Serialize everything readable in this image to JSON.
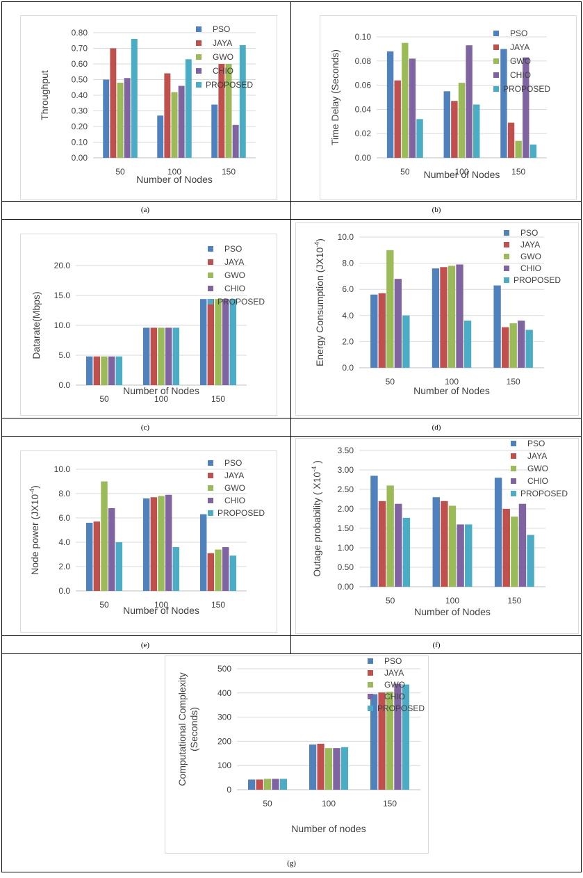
{
  "colors": {
    "PSO": "#4f81bd",
    "JAYA": "#c0504d",
    "GWO": "#9bbb59",
    "CHIO": "#8064a2",
    "PROPOSED": "#4bacc6"
  },
  "chart_data": [
    {
      "id": "a",
      "type": "bar",
      "caption": "(a)",
      "title": "",
      "xlabel": "Number of Nodes",
      "ylabel": "Throughput",
      "categories": [
        "50",
        "100",
        "150"
      ],
      "yticks": [
        "0.00",
        "0.10",
        "0.20",
        "0.30",
        "0.40",
        "0.50",
        "0.60",
        "0.70",
        "0.80"
      ],
      "ylim": [
        0,
        0.8
      ],
      "legend": "right",
      "series": [
        {
          "name": "PSO",
          "values": [
            0.5,
            0.27,
            0.34
          ]
        },
        {
          "name": "JAYA",
          "values": [
            0.7,
            0.54,
            0.6
          ]
        },
        {
          "name": "GWO",
          "values": [
            0.48,
            0.42,
            0.6
          ]
        },
        {
          "name": "CHIO",
          "values": [
            0.51,
            0.46,
            0.21
          ]
        },
        {
          "name": "PROPOSED",
          "values": [
            0.76,
            0.63,
            0.72
          ]
        }
      ]
    },
    {
      "id": "b",
      "type": "bar",
      "caption": "(b)",
      "title": "",
      "xlabel": "Number of Nodes",
      "ylabel": "Time Delay (Seconds)",
      "categories": [
        "50",
        "100",
        "150"
      ],
      "yticks": [
        "0.00",
        "0.02",
        "0.04",
        "0.06",
        "0.08",
        "0.10"
      ],
      "ylim": [
        0,
        0.1
      ],
      "legend": "right",
      "series": [
        {
          "name": "PSO",
          "values": [
            0.088,
            0.055,
            0.09
          ]
        },
        {
          "name": "JAYA",
          "values": [
            0.064,
            0.047,
            0.029
          ]
        },
        {
          "name": "GWO",
          "values": [
            0.095,
            0.062,
            0.014
          ]
        },
        {
          "name": "CHIO",
          "values": [
            0.082,
            0.093,
            0.083
          ]
        },
        {
          "name": "PROPOSED",
          "values": [
            0.032,
            0.044,
            0.011
          ]
        }
      ]
    },
    {
      "id": "c",
      "type": "bar",
      "caption": "(c)",
      "title": "",
      "xlabel": "Number of Nodes",
      "ylabel": "Datarate(Mbps)",
      "categories": [
        "50",
        "100",
        "150"
      ],
      "yticks": [
        "0.0",
        "5.0",
        "10.0",
        "15.0",
        "20.0"
      ],
      "ylim": [
        0,
        20
      ],
      "legend": "right",
      "series": [
        {
          "name": "PSO",
          "values": [
            4.8,
            9.6,
            14.4
          ]
        },
        {
          "name": "JAYA",
          "values": [
            4.8,
            9.6,
            14.4
          ]
        },
        {
          "name": "GWO",
          "values": [
            4.8,
            9.6,
            14.4
          ]
        },
        {
          "name": "CHIO",
          "values": [
            4.8,
            9.6,
            14.4
          ]
        },
        {
          "name": "PROPOSED",
          "values": [
            4.8,
            9.6,
            14.4
          ]
        }
      ]
    },
    {
      "id": "d",
      "type": "bar",
      "caption": "(d)",
      "title": "",
      "xlabel": "Number of Nodes",
      "ylabel": "Energy Consumption (JX10",
      "ylabel_sup": "-4",
      "ylabel_end": ")",
      "categories": [
        "50",
        "100",
        "150"
      ],
      "yticks": [
        "0.0",
        "2.0",
        "4.0",
        "6.0",
        "8.0",
        "10.0"
      ],
      "ylim": [
        0,
        10
      ],
      "legend": "right",
      "series": [
        {
          "name": "PSO",
          "values": [
            5.6,
            7.6,
            6.3
          ]
        },
        {
          "name": "JAYA",
          "values": [
            5.7,
            7.7,
            3.1
          ]
        },
        {
          "name": "GWO",
          "values": [
            9.0,
            7.8,
            3.4
          ]
        },
        {
          "name": "CHIO",
          "values": [
            6.8,
            7.9,
            3.6
          ]
        },
        {
          "name": "PROPOSED",
          "values": [
            4.0,
            3.6,
            2.9
          ]
        }
      ]
    },
    {
      "id": "e",
      "type": "bar",
      "caption": "(e)",
      "title": "",
      "xlabel": "Number of Nodes",
      "ylabel": "Node power (JX10",
      "ylabel_sup": "-4",
      "ylabel_end": ")",
      "categories": [
        "50",
        "100",
        "150"
      ],
      "yticks": [
        "0.0",
        "2.0",
        "4.0",
        "6.0",
        "8.0",
        "10.0"
      ],
      "ylim": [
        0,
        10
      ],
      "legend": "right",
      "series": [
        {
          "name": "PSO",
          "values": [
            5.6,
            7.6,
            6.3
          ]
        },
        {
          "name": "JAYA",
          "values": [
            5.7,
            7.7,
            3.1
          ]
        },
        {
          "name": "GWO",
          "values": [
            9.0,
            7.8,
            3.4
          ]
        },
        {
          "name": "CHIO",
          "values": [
            6.8,
            7.9,
            3.6
          ]
        },
        {
          "name": "PROPOSED",
          "values": [
            4.0,
            3.6,
            2.9
          ]
        }
      ]
    },
    {
      "id": "f",
      "type": "bar",
      "caption": "(f)",
      "title": "",
      "xlabel": "Number of Nodes",
      "ylabel": "Outage probability ( X10",
      "ylabel_sup": "-4",
      "ylabel_end": " )",
      "categories": [
        "50",
        "100",
        "150"
      ],
      "yticks": [
        "0.00",
        "0.50",
        "1.00",
        "1.50",
        "2.00",
        "2.50",
        "3.00",
        "3.50"
      ],
      "ylim": [
        0,
        3.5
      ],
      "legend": "right",
      "series": [
        {
          "name": "PSO",
          "values": [
            2.85,
            2.3,
            2.8
          ]
        },
        {
          "name": "JAYA",
          "values": [
            2.2,
            2.2,
            2.0
          ]
        },
        {
          "name": "GWO",
          "values": [
            2.6,
            2.08,
            1.8
          ]
        },
        {
          "name": "CHIO",
          "values": [
            2.13,
            1.6,
            2.13
          ]
        },
        {
          "name": "PROPOSED",
          "values": [
            1.77,
            1.6,
            1.33
          ]
        }
      ]
    },
    {
      "id": "g",
      "type": "bar",
      "caption": "(g)",
      "title": "",
      "xlabel": "Number of nodes",
      "ylabel": "Computational Complexity",
      "ylabel2": "(Seconds)",
      "categories": [
        "50",
        "100",
        "150"
      ],
      "yticks": [
        "0",
        "100",
        "200",
        "300",
        "400",
        "500"
      ],
      "ylim": [
        0,
        500
      ],
      "legend": "right",
      "series": [
        {
          "name": "PSO",
          "values": [
            42,
            187,
            395
          ]
        },
        {
          "name": "JAYA",
          "values": [
            42,
            190,
            402
          ]
        },
        {
          "name": "GWO",
          "values": [
            45,
            172,
            405
          ]
        },
        {
          "name": "CHIO",
          "values": [
            45,
            172,
            438
          ]
        },
        {
          "name": "PROPOSED",
          "values": [
            45,
            176,
            435
          ]
        }
      ]
    }
  ]
}
